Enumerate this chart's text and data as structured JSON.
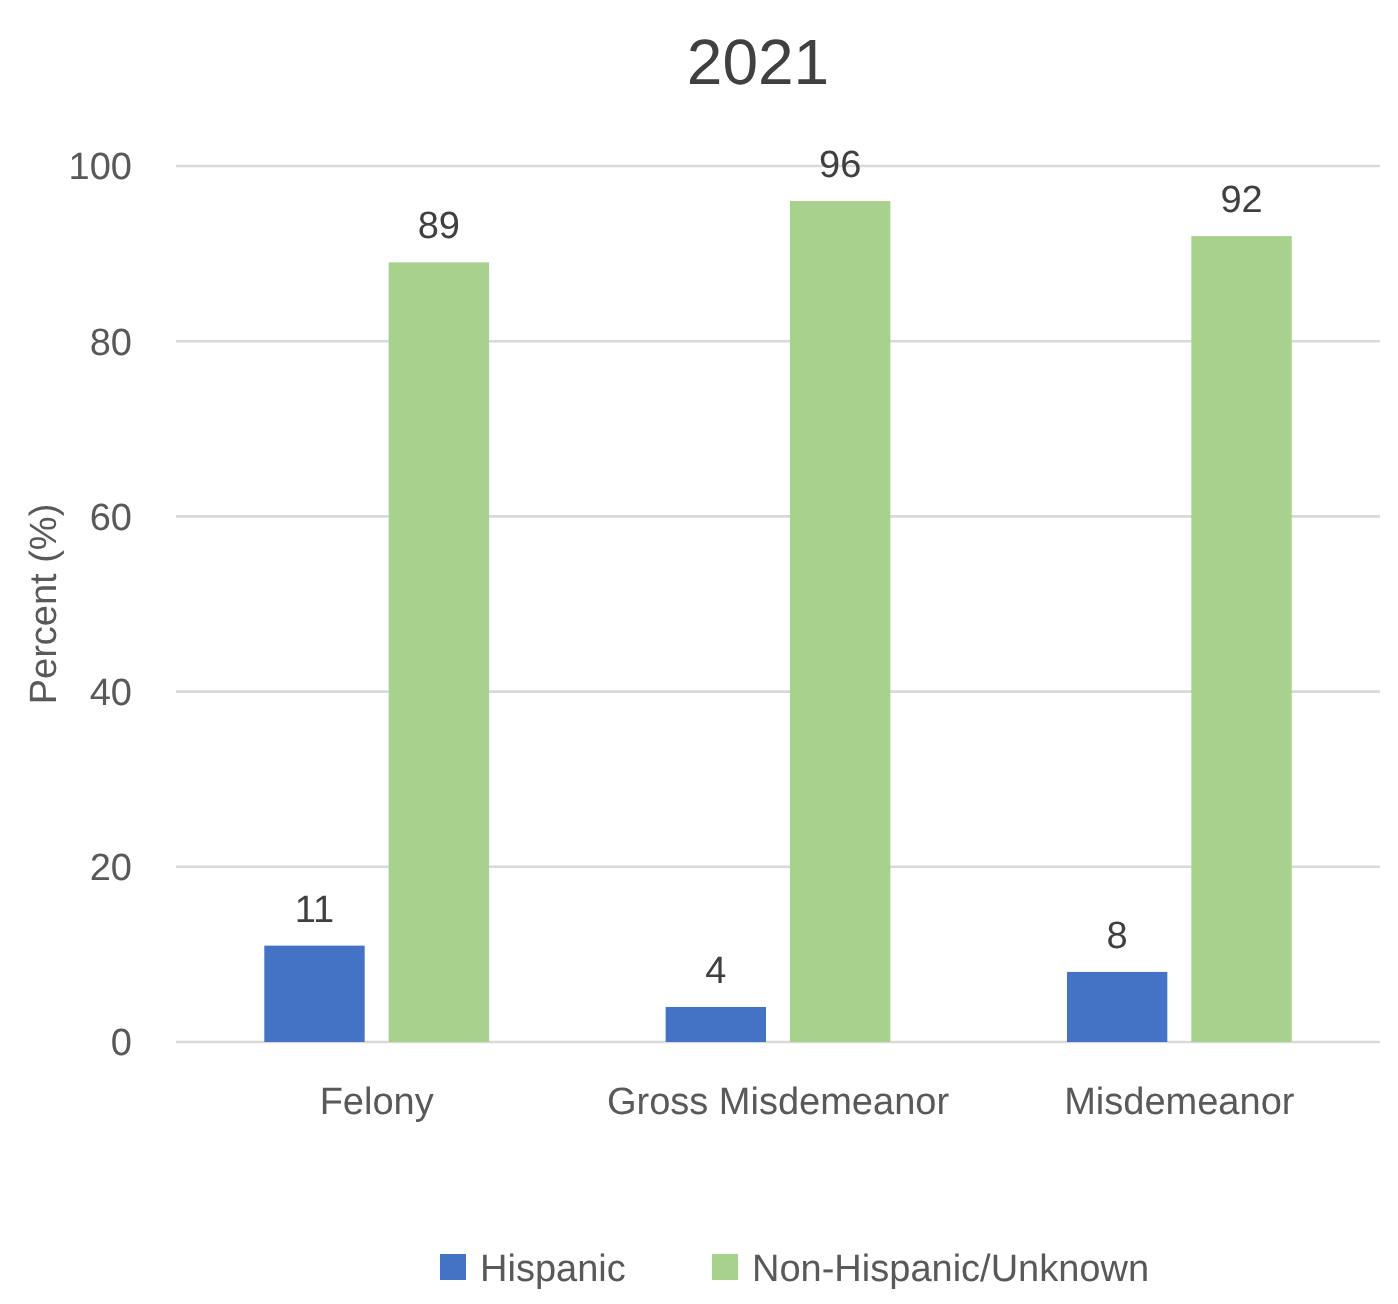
{
  "chart_data": {
    "type": "bar",
    "title": "2021",
    "ylabel": "Percent (%)",
    "categories": [
      "Felony",
      "Gross Misdemeanor",
      "Misdemeanor"
    ],
    "series": [
      {
        "name": "Hispanic",
        "color": "#4472c4",
        "values": [
          11,
          4,
          8
        ]
      },
      {
        "name": "Non-Hispanic/Unknown",
        "color": "#a9d18e",
        "values": [
          89,
          96,
          92
        ]
      }
    ],
    "ylim": [
      0,
      100
    ],
    "yticks": [
      0,
      20,
      40,
      60,
      80,
      100
    ],
    "grid": "y",
    "legend": "bottom",
    "data_labels": true
  }
}
